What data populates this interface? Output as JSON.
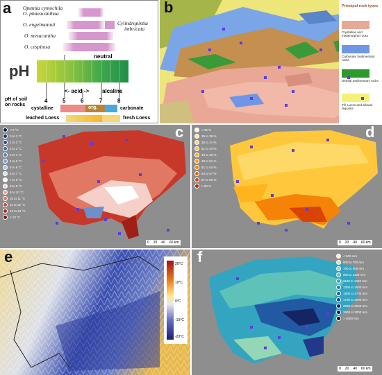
{
  "panel_a": {
    "label": "a",
    "species": [
      "Opuntia cymochila",
      "O. phaeacanthaa",
      "O. engelmannii",
      "Cylindropintia",
      "imbricata",
      "O. mesacantha",
      "O. cespitosa"
    ],
    "neutral": "neutral",
    "ph_title": "pH",
    "ticks": [
      "4",
      "5",
      "6",
      "7",
      "8"
    ],
    "acid": "<- acid ->",
    "alcaline": "alcaline",
    "soil_label": "pH of soil on rocks",
    "cystalline": "cystalline",
    "org": "org.",
    "carbonate": "carbonate",
    "leached": "leached Loess",
    "fresh": "fresh Loess"
  },
  "panel_b": {
    "label": "b",
    "legend_title": "Principal rock types",
    "legend": [
      {
        "text": "Crystalline and metamorphic rocks",
        "color": "#e8a896"
      },
      {
        "text": "Carbonate Sedimentary rocks",
        "color": "#6f96e6"
      },
      {
        "text": "Detrital Sedimentary rocks",
        "color": "#2d9a2d"
      },
      {
        "text": "Till, Loess and alluvial deposits",
        "color": "#f4f07a"
      }
    ]
  },
  "panel_c": {
    "label": "c",
    "legend": [
      {
        "text": "< 0 °C",
        "color": "#0d1a4a"
      },
      {
        "text": "0 to 1 °C",
        "color": "#1e2f6e"
      },
      {
        "text": "1 to 2 °C",
        "color": "#2c478f"
      },
      {
        "text": "2 to 3 °C",
        "color": "#3d62ad"
      },
      {
        "text": "3 to 4 °C",
        "color": "#5b82c5"
      },
      {
        "text": "4 to 5 °C",
        "color": "#80a5d8"
      },
      {
        "text": "5 to 6 °C",
        "color": "#a8c5e6"
      },
      {
        "text": "6 to 7 °C",
        "color": "#d2e2f1"
      },
      {
        "text": "7 to 8 °C",
        "color": "#ffffff"
      },
      {
        "text": "8 to 9 °C",
        "color": "#f7d6d0"
      },
      {
        "text": "9 to 10 °C",
        "color": "#eba89c"
      },
      {
        "text": "10 to 11 °C",
        "color": "#dc7766"
      },
      {
        "text": "11 to 12 °C",
        "color": "#c84a3a"
      },
      {
        "text": "12 to 13 °C",
        "color": "#ad2a20"
      },
      {
        "text": "> 13 °C",
        "color": "#7d1510"
      }
    ],
    "scale": [
      "0",
      "20",
      "40",
      "60 km"
    ]
  },
  "panel_d": {
    "label": "d",
    "legend": [
      {
        "text": "< 35 %",
        "color": "#fff6cf"
      },
      {
        "text": "35 to 38 %",
        "color": "#ffe89a"
      },
      {
        "text": "38 to 41 %",
        "color": "#ffd968"
      },
      {
        "text": "41 to 44 %",
        "color": "#ffc83c"
      },
      {
        "text": "44 to 48 %",
        "color": "#ffb41e"
      },
      {
        "text": "48 to 51 %",
        "color": "#fd9d10"
      },
      {
        "text": "51 to 54 %",
        "color": "#f58308"
      },
      {
        "text": "54 to 57 %",
        "color": "#ea6404"
      },
      {
        "text": "57 to 60 %",
        "color": "#d94402"
      },
      {
        "text": "> 60 %",
        "color": "#b82400"
      }
    ],
    "scale": [
      "0",
      "20",
      "40",
      "60 km"
    ]
  },
  "panel_e": {
    "label": "e",
    "colorbar": [
      "20°C",
      "10°C",
      "0°C",
      "-10°C",
      "-20°C"
    ]
  },
  "panel_f": {
    "label": "f",
    "legend": [
      {
        "text": "< 500 mm",
        "color": "#f7fcd0"
      },
      {
        "text": "500 to 700 mm",
        "color": "#c7ebb4"
      },
      {
        "text": "700 to 900 mm",
        "color": "#94d7b5"
      },
      {
        "text": "900 to 1100 mm",
        "color": "#5fc2b8"
      },
      {
        "text": "1100 to 1300 mm",
        "color": "#34a5c1"
      },
      {
        "text": "1300 to 1500 mm",
        "color": "#1f7fb7"
      },
      {
        "text": "1500 to 1700 mm",
        "color": "#215aa3"
      },
      {
        "text": "1700 to 2000 mm",
        "color": "#22398b"
      },
      {
        "text": "2000 to 2500 mm",
        "color": "#152463"
      },
      {
        "text": "2500 to 3000 mm",
        "color": "#0b1640"
      },
      {
        "text": "> 3000 mm",
        "color": "#050a22"
      }
    ],
    "scale": [
      "0",
      "20",
      "40",
      "60 km"
    ]
  }
}
